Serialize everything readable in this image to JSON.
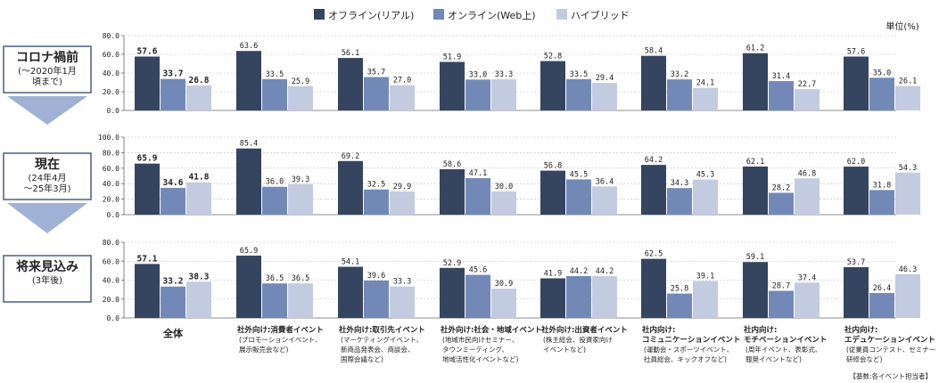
{
  "legend": [
    {
      "name": "オフライン(リアル)",
      "color": "#35445f"
    },
    {
      "name": "オンライン(Web上)",
      "color": "#7289b8"
    },
    {
      "name": "ハイブリッド",
      "color": "#c2cbe0"
    }
  ],
  "unit": "単位(%)",
  "base_note": "【基数:各イベント担当者】",
  "chart_data": {
    "type": "bar",
    "categories": [
      {
        "title": "全体",
        "sub": []
      },
      {
        "title": "社外向け:消費者イベント",
        "sub": [
          "(プロモーションイベント、",
          "展示販売会など)"
        ]
      },
      {
        "title": "社外向け:取引先イベント",
        "sub": [
          "(マーケティングイベント、",
          "新商品発表会、商談会、",
          "国際会議など)"
        ]
      },
      {
        "title": "社外向け:社会・地域イベント",
        "sub": [
          "(地域市民向けセミナー、",
          "タウンミーティング、",
          "地域活性化イベントなど)"
        ]
      },
      {
        "title": "社外向け:出資者イベント",
        "sub": [
          "(株主総会、投資家向け",
          "イベントなど)"
        ]
      },
      {
        "title": "社内向け:",
        "title2": "コミュニケーションイベント",
        "sub": [
          "(運動会・スポーツイベント、",
          "社員総会、キックオフなど)"
        ]
      },
      {
        "title": "社内向け:",
        "title2": "モチベーションイベント",
        "sub": [
          "(周年イベント、表彰式、",
          "報奨イベントなど)"
        ]
      },
      {
        "title": "社内向け:",
        "title2": "エデュケーションイベント",
        "sub": [
          "(従業員コンテスト、セミナー",
          "研修会など)"
        ]
      }
    ],
    "panels": [
      {
        "label": "コロナ禍前",
        "sublabel": [
          "(～2020年1月",
          "頃まで)"
        ],
        "ylim": [
          0,
          80
        ],
        "ticks": [
          "0.0",
          "20.0",
          "40.0",
          "60.0",
          "80.0"
        ],
        "series": [
          {
            "name": "オフライン(リアル)",
            "values": [
              57.6,
              63.6,
              56.1,
              51.9,
              52.8,
              58.4,
              61.2,
              57.6
            ]
          },
          {
            "name": "オンライン(Web上)",
            "values": [
              33.7,
              33.5,
              35.7,
              33.0,
              33.5,
              33.2,
              31.4,
              35.0
            ]
          },
          {
            "name": "ハイブリッド",
            "values": [
              26.8,
              25.9,
              27.0,
              33.3,
              29.4,
              24.1,
              22.7,
              26.1
            ]
          }
        ]
      },
      {
        "label": "現在",
        "sublabel": [
          "(24年4月",
          "～25年3月)"
        ],
        "ylim": [
          0,
          100
        ],
        "ticks": [
          "0.0",
          "20.0",
          "40.0",
          "60.0",
          "80.0",
          "100.0"
        ],
        "series": [
          {
            "name": "オフライン(リアル)",
            "values": [
              65.9,
              85.4,
              69.2,
              58.6,
              56.8,
              64.2,
              62.1,
              62.0
            ]
          },
          {
            "name": "オンライン(Web上)",
            "values": [
              34.6,
              36.0,
              32.5,
              47.1,
              45.5,
              34.3,
              28.2,
              31.8
            ]
          },
          {
            "name": "ハイブリッド",
            "values": [
              41.8,
              39.3,
              29.9,
              30.0,
              36.4,
              45.3,
              46.8,
              54.3
            ]
          }
        ]
      },
      {
        "label": "将来見込み",
        "sublabel": [
          "(3年後)"
        ],
        "ylim": [
          0,
          80
        ],
        "ticks": [
          "0.0",
          "20.0",
          "40.0",
          "60.0",
          "80.0"
        ],
        "series": [
          {
            "name": "オフライン(リアル)",
            "values": [
              57.1,
              65.9,
              54.1,
              52.9,
              41.9,
              62.5,
              59.1,
              53.7
            ]
          },
          {
            "name": "オンライン(Web上)",
            "values": [
              33.2,
              36.5,
              39.6,
              45.6,
              44.2,
              25.8,
              28.7,
              26.4
            ]
          },
          {
            "name": "ハイブリッド",
            "values": [
              38.3,
              36.5,
              33.3,
              30.9,
              44.2,
              39.1,
              37.4,
              46.3
            ]
          }
        ]
      }
    ]
  }
}
